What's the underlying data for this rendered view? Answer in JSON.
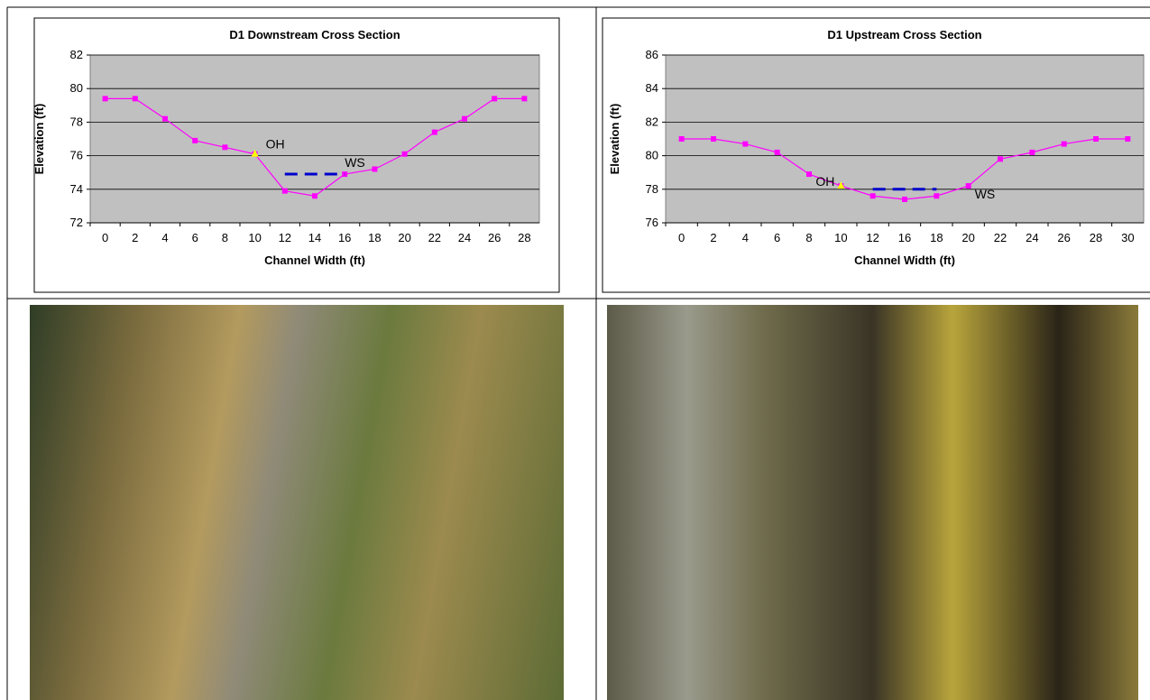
{
  "chart_data": [
    {
      "type": "line",
      "title": "D1 Downstream Cross Section",
      "x_label": "Channel Width (ft)",
      "y_label": "Elevation (ft)",
      "categories": [
        "0",
        "2",
        "4",
        "6",
        "8",
        "10",
        "12",
        "14",
        "16",
        "18",
        "20",
        "22",
        "24",
        "26",
        "28"
      ],
      "series": [
        {
          "color": "#ff00ff",
          "marker": "square",
          "values": [
            79.4,
            79.4,
            78.2,
            76.9,
            76.5,
            76.1,
            73.9,
            73.6,
            74.9,
            75.2,
            76.1,
            77.4,
            78.2,
            79.4,
            79.4
          ]
        },
        {
          "color": "#0000cc",
          "dash": true,
          "values": [
            null,
            null,
            null,
            null,
            null,
            null,
            74.9,
            74.9,
            74.9,
            null,
            null,
            null,
            null,
            null,
            null
          ]
        },
        {
          "color": "#ffff00",
          "marker": "triangle",
          "values": [
            null,
            null,
            null,
            null,
            null,
            76.1,
            null,
            null,
            null,
            null,
            null,
            null,
            null,
            null,
            null
          ]
        }
      ],
      "annotations": [
        "OH",
        "WS"
      ],
      "ylim": [
        72,
        82
      ],
      "yticks": [
        72,
        74,
        76,
        78,
        80,
        82
      ],
      "grid": true
    },
    {
      "type": "line",
      "title": "D1 Upstream Cross Section",
      "x_label": "Channel Width (ft)",
      "y_label": "Elevation (ft)",
      "categories": [
        "0",
        "2",
        "4",
        "6",
        "8",
        "10",
        "12",
        "16",
        "18",
        "20",
        "22",
        "24",
        "26",
        "28",
        "30"
      ],
      "series": [
        {
          "color": "#ff00ff",
          "marker": "square",
          "values": [
            81,
            81,
            80.7,
            80.2,
            78.9,
            78.2,
            77.6,
            77.4,
            77.6,
            78.2,
            79.8,
            80.2,
            80.7,
            81,
            81
          ]
        },
        {
          "color": "#0000cc",
          "dash": true,
          "values": [
            null,
            null,
            null,
            null,
            null,
            null,
            78,
            78,
            78,
            null,
            null,
            null,
            null,
            null,
            null
          ]
        },
        {
          "color": "#ffff00",
          "marker": "triangle",
          "values": [
            null,
            null,
            null,
            null,
            null,
            78.2,
            null,
            null,
            null,
            null,
            null,
            null,
            null,
            null,
            null
          ]
        }
      ],
      "annotations": [
        "OH",
        "WS"
      ],
      "ylim": [
        76,
        86
      ],
      "yticks": [
        76,
        78,
        80,
        82,
        84,
        86
      ],
      "grid": true
    }
  ]
}
